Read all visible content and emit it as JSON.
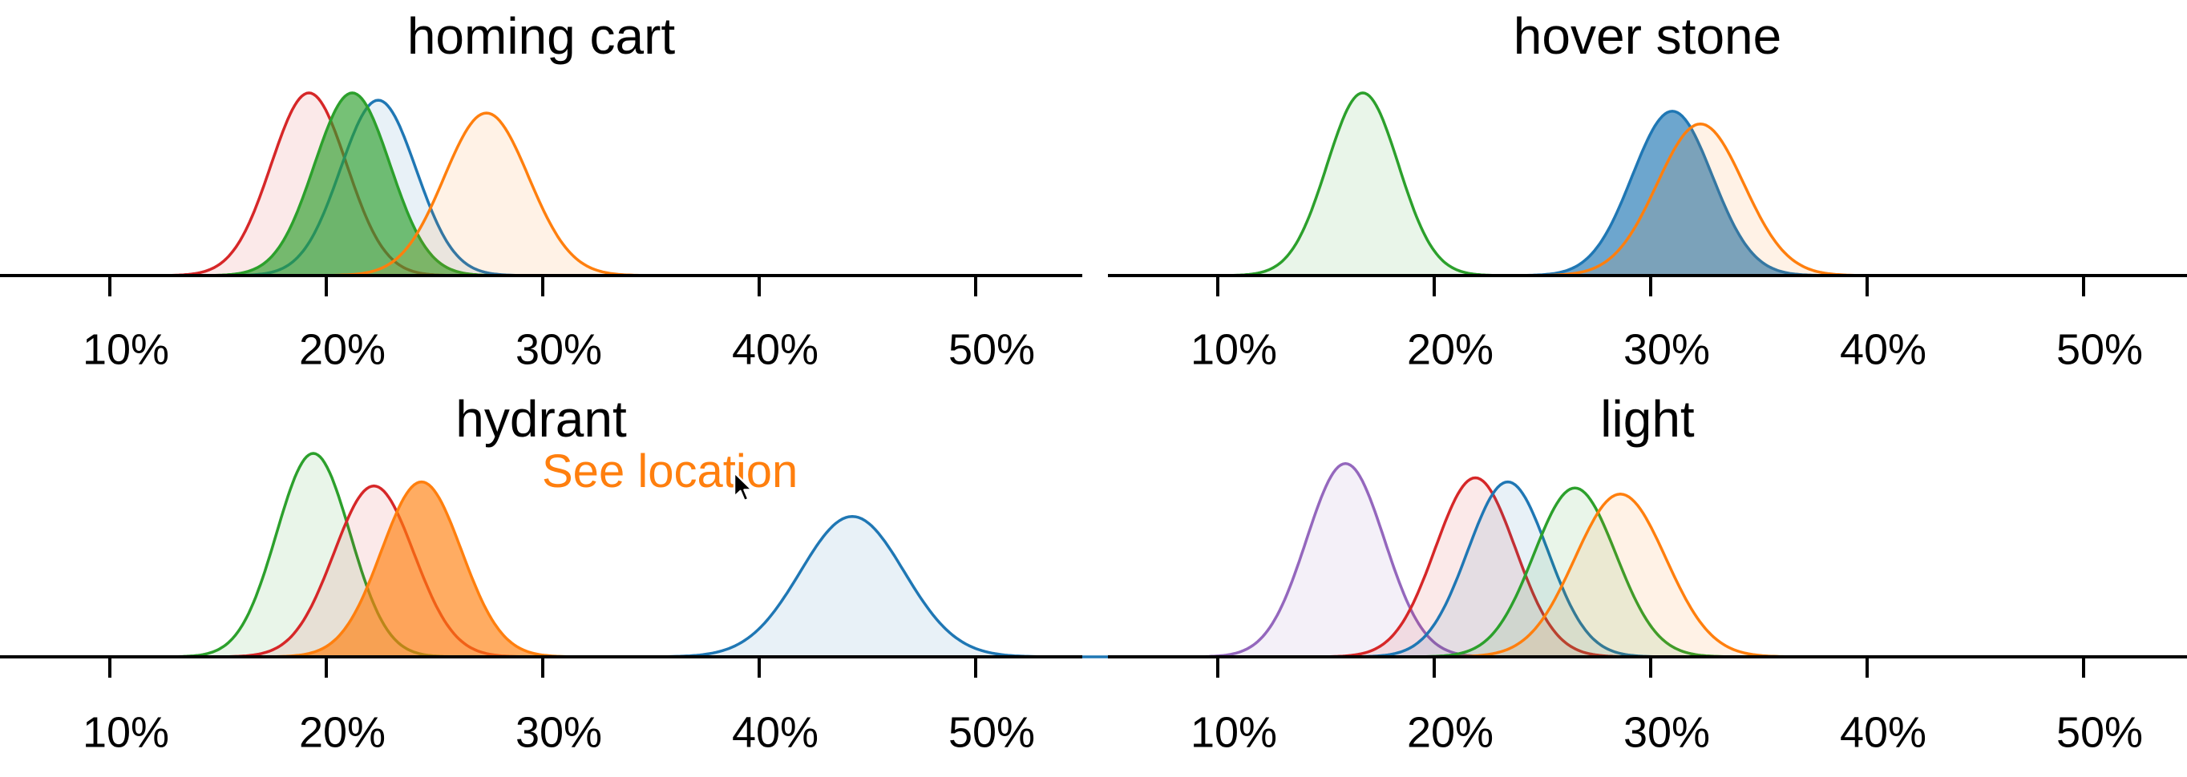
{
  "chart_data": [
    {
      "type": "area",
      "title": "homing cart",
      "xlim": [
        5,
        55
      ],
      "xticks": [
        "10%",
        "20%",
        "30%",
        "40%",
        "50%"
      ],
      "xtick_values": [
        10,
        20,
        30,
        40,
        50
      ],
      "series": [
        {
          "color": "#d62728",
          "mean": 19.2,
          "sd": 1.75,
          "peak": 1.0,
          "fill_opacity": 0.1
        },
        {
          "color": "#1f77b4",
          "mean": 22.4,
          "sd": 1.75,
          "peak": 0.96,
          "fill_opacity": 0.1
        },
        {
          "color": "#2ca02c",
          "mean": 21.2,
          "sd": 1.75,
          "peak": 1.0,
          "fill_opacity": 0.65
        },
        {
          "color": "#ff7f0e",
          "mean": 27.4,
          "sd": 1.95,
          "peak": 0.89,
          "fill_opacity": 0.1
        }
      ]
    },
    {
      "type": "area",
      "title": "hover stone",
      "xlim": [
        5,
        55
      ],
      "xticks": [
        "10%",
        "20%",
        "30%",
        "40%",
        "50%"
      ],
      "xtick_values": [
        10,
        20,
        30,
        40,
        50
      ],
      "series": [
        {
          "color": "#2ca02c",
          "mean": 16.7,
          "sd": 1.65,
          "peak": 1.0,
          "fill_opacity": 0.1
        },
        {
          "color": "#1f77b4",
          "mean": 31.0,
          "sd": 1.85,
          "peak": 0.9,
          "fill_opacity": 0.65
        },
        {
          "color": "#ff7f0e",
          "mean": 32.3,
          "sd": 2.0,
          "peak": 0.83,
          "fill_opacity": 0.1
        }
      ]
    },
    {
      "type": "area",
      "title": "hydrant",
      "xlim": [
        5,
        55
      ],
      "xticks": [
        "10%",
        "20%",
        "30%",
        "40%",
        "50%"
      ],
      "xtick_values": [
        10,
        20,
        30,
        40,
        50
      ],
      "series": [
        {
          "color": "#2ca02c",
          "mean": 19.4,
          "sd": 1.7,
          "peak": 1.0,
          "fill_opacity": 0.1
        },
        {
          "color": "#d62728",
          "mean": 22.2,
          "sd": 1.85,
          "peak": 0.84,
          "fill_opacity": 0.1
        },
        {
          "color": "#1f77b4",
          "mean": 44.3,
          "sd": 2.4,
          "peak": 0.69,
          "fill_opacity": 0.1
        },
        {
          "color": "#ff7f0e",
          "mean": 24.4,
          "sd": 1.85,
          "peak": 0.86,
          "fill_opacity": 0.65
        }
      ]
    },
    {
      "type": "area",
      "title": "light",
      "xlim": [
        5,
        55
      ],
      "xticks": [
        "10%",
        "20%",
        "30%",
        "40%",
        "50%"
      ],
      "xtick_values": [
        10,
        20,
        30,
        40,
        50
      ],
      "series": [
        {
          "color": "#9467bd",
          "mean": 15.9,
          "sd": 1.8,
          "peak": 0.95,
          "fill_opacity": 0.1
        },
        {
          "color": "#d62728",
          "mean": 21.9,
          "sd": 1.85,
          "peak": 0.88,
          "fill_opacity": 0.1
        },
        {
          "color": "#1f77b4",
          "mean": 23.4,
          "sd": 1.85,
          "peak": 0.86,
          "fill_opacity": 0.1
        },
        {
          "color": "#2ca02c",
          "mean": 26.5,
          "sd": 1.9,
          "peak": 0.83,
          "fill_opacity": 0.1
        },
        {
          "color": "#ff7f0e",
          "mean": 28.6,
          "sd": 2.1,
          "peak": 0.8,
          "fill_opacity": 0.1
        }
      ]
    }
  ],
  "overlay": {
    "link_text": "See location",
    "link_color": "#ff7f0e",
    "cursor_icon": "arrow-cursor-icon"
  }
}
